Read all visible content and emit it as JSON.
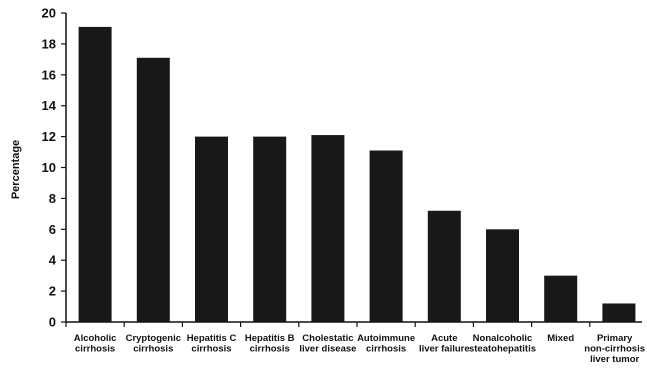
{
  "chart_data": {
    "type": "bar",
    "title": "",
    "xlabel": "",
    "ylabel": "Percentage",
    "ylim": [
      0,
      20
    ],
    "yticks": [
      0,
      2,
      4,
      6,
      8,
      10,
      12,
      14,
      16,
      18,
      20
    ],
    "grid": false,
    "legend": "none",
    "bar_color": "#1a1717",
    "categories": [
      [
        "Alcoholic",
        "cirrhosis"
      ],
      [
        "Cryptogenic",
        "cirrhosis"
      ],
      [
        "Hepatitis C",
        "cirrhosis"
      ],
      [
        "Hepatitis B",
        "cirrhosis"
      ],
      [
        "Cholestatic",
        "liver disease"
      ],
      [
        "Autoimmune",
        "cirrhosis"
      ],
      [
        "Acute",
        "liver failure"
      ],
      [
        "Nonalcoholic",
        "steatohepatitis"
      ],
      [
        "Mixed"
      ],
      [
        "Primary",
        "non-cirrhosis",
        "liver tumor"
      ]
    ],
    "values": [
      19.1,
      17.1,
      12.0,
      12.0,
      12.1,
      11.1,
      7.2,
      6.0,
      3.0,
      1.2
    ]
  }
}
